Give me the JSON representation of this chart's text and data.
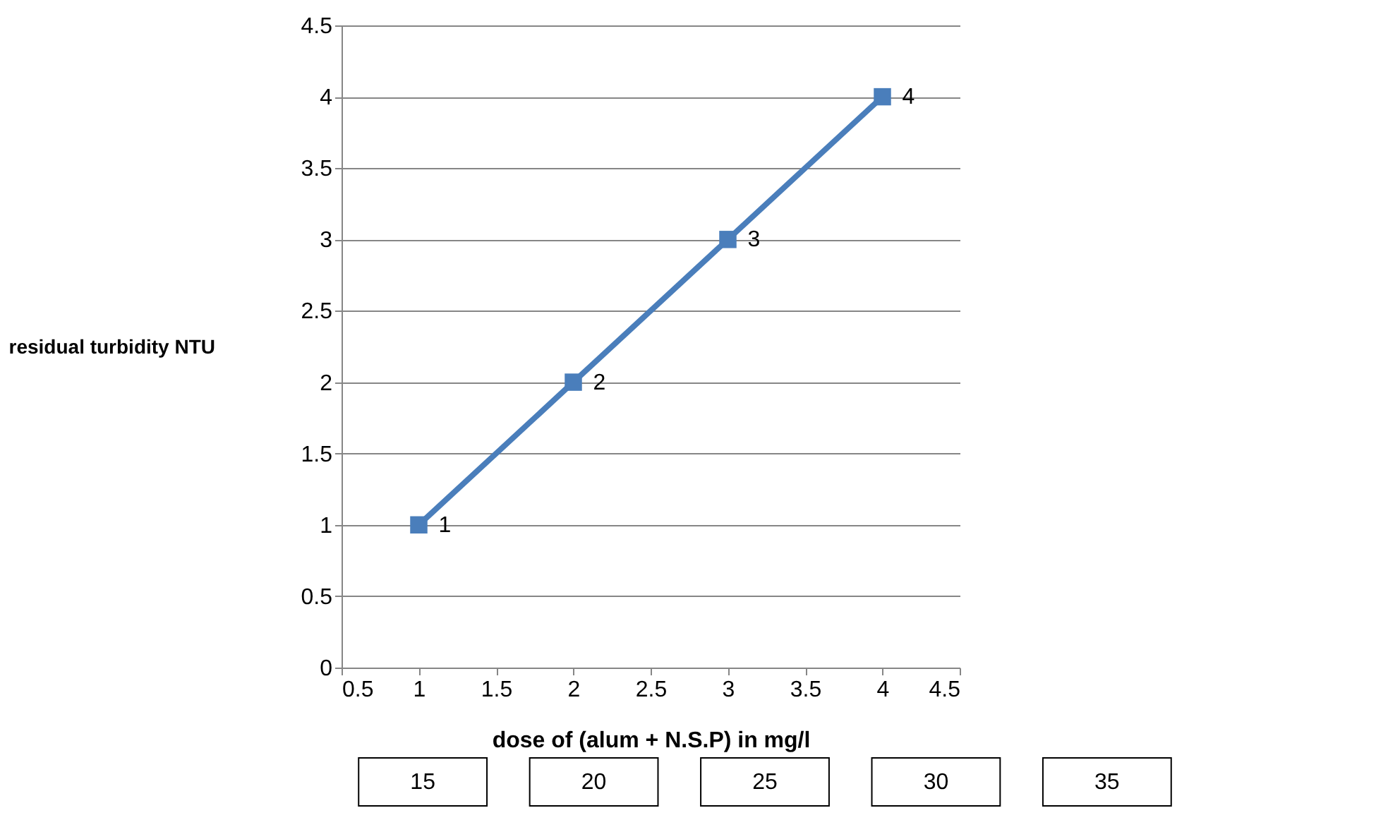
{
  "chart_data": {
    "type": "line",
    "xlabel": "dose of (alum + N.S.P) in mg/l",
    "ylabel": "residual turbidity NTU",
    "x": [
      1,
      2,
      3,
      4
    ],
    "series": [
      {
        "color": "#4a7ebb",
        "values": [
          1,
          2,
          3,
          4
        ]
      }
    ],
    "xlim": [
      0.5,
      4.5
    ],
    "xticks": [
      0.5,
      1,
      1.5,
      2,
      2.5,
      3,
      3.5,
      4,
      4.5
    ],
    "ylim": [
      0,
      4.5
    ],
    "yticks": [
      0,
      0.5,
      1,
      1.5,
      2,
      2.5,
      3,
      3.5,
      4,
      4.5
    ],
    "grid": "y",
    "marker": "square",
    "line_style": "solid",
    "data_labels": true,
    "legend": false,
    "annotations": [
      "15",
      "20",
      "25",
      "30",
      "35"
    ]
  }
}
